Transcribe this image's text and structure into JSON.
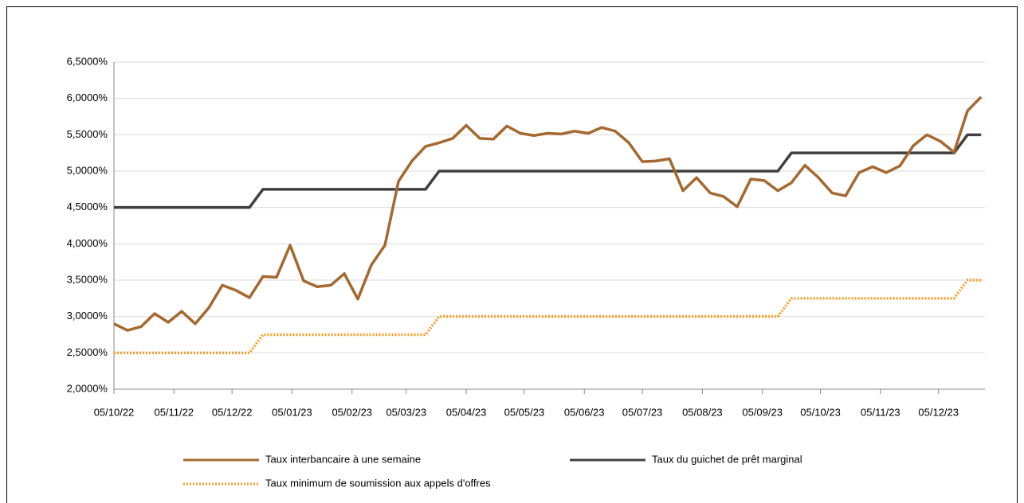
{
  "chart_data": {
    "type": "line",
    "x": [
      "2022-10-05",
      "2022-10-12",
      "2022-10-19",
      "2022-10-26",
      "2022-11-02",
      "2022-11-09",
      "2022-11-16",
      "2022-11-23",
      "2022-11-30",
      "2022-12-07",
      "2022-12-14",
      "2022-12-21",
      "2022-12-28",
      "2023-01-04",
      "2023-01-11",
      "2023-01-18",
      "2023-01-25",
      "2023-02-01",
      "2023-02-08",
      "2023-02-15",
      "2023-02-22",
      "2023-03-01",
      "2023-03-08",
      "2023-03-15",
      "2023-03-22",
      "2023-03-29",
      "2023-04-05",
      "2023-04-12",
      "2023-04-19",
      "2023-04-26",
      "2023-05-03",
      "2023-05-10",
      "2023-05-17",
      "2023-05-24",
      "2023-05-31",
      "2023-06-07",
      "2023-06-14",
      "2023-06-21",
      "2023-06-28",
      "2023-07-05",
      "2023-07-12",
      "2023-07-19",
      "2023-07-26",
      "2023-08-02",
      "2023-08-09",
      "2023-08-16",
      "2023-08-23",
      "2023-08-30",
      "2023-09-06",
      "2023-09-13",
      "2023-09-20",
      "2023-09-27",
      "2023-10-04",
      "2023-10-11",
      "2023-10-18",
      "2023-10-25",
      "2023-11-01",
      "2023-11-08",
      "2023-11-15",
      "2023-11-22",
      "2023-11-29",
      "2023-12-06",
      "2023-12-13",
      "2023-12-20",
      "2023-12-27"
    ],
    "series": [
      {
        "name": "Taux interbancaire à une semaine",
        "color": "#a5692f",
        "dash": "solid",
        "values": [
          2.9,
          2.81,
          2.86,
          3.04,
          2.92,
          3.07,
          2.9,
          3.12,
          3.43,
          3.36,
          3.26,
          3.55,
          3.54,
          3.98,
          3.49,
          3.41,
          3.43,
          3.59,
          3.24,
          3.71,
          3.98,
          4.86,
          5.14,
          5.34,
          5.39,
          5.45,
          5.63,
          5.45,
          5.44,
          5.62,
          5.52,
          5.49,
          5.52,
          5.51,
          5.55,
          5.52,
          5.6,
          5.55,
          5.39,
          5.13,
          5.14,
          5.17,
          4.73,
          4.91,
          4.7,
          4.65,
          4.51,
          4.89,
          4.87,
          4.73,
          4.84,
          5.08,
          4.91,
          4.7,
          4.66,
          4.98,
          5.06,
          4.98,
          5.07,
          5.35,
          5.5,
          5.41,
          5.26,
          5.83,
          6.02
        ]
      },
      {
        "name": "Taux du guichet de prêt marginal",
        "color": "#404040",
        "dash": "solid",
        "values": [
          4.5,
          4.5,
          4.5,
          4.5,
          4.5,
          4.5,
          4.5,
          4.5,
          4.5,
          4.5,
          4.5,
          4.75,
          4.75,
          4.75,
          4.75,
          4.75,
          4.75,
          4.75,
          4.75,
          4.75,
          4.75,
          4.75,
          4.75,
          4.75,
          5.0,
          5.0,
          5.0,
          5.0,
          5.0,
          5.0,
          5.0,
          5.0,
          5.0,
          5.0,
          5.0,
          5.0,
          5.0,
          5.0,
          5.0,
          5.0,
          5.0,
          5.0,
          5.0,
          5.0,
          5.0,
          5.0,
          5.0,
          5.0,
          5.0,
          5.0,
          5.25,
          5.25,
          5.25,
          5.25,
          5.25,
          5.25,
          5.25,
          5.25,
          5.25,
          5.25,
          5.25,
          5.25,
          5.25,
          5.5,
          5.5
        ]
      },
      {
        "name": "Taux minimum de soumission aux appels d'offres",
        "color": "#f5a02a",
        "dash": "dotted",
        "values": [
          2.5,
          2.5,
          2.5,
          2.5,
          2.5,
          2.5,
          2.5,
          2.5,
          2.5,
          2.5,
          2.5,
          2.75,
          2.75,
          2.75,
          2.75,
          2.75,
          2.75,
          2.75,
          2.75,
          2.75,
          2.75,
          2.75,
          2.75,
          2.75,
          3.0,
          3.0,
          3.0,
          3.0,
          3.0,
          3.0,
          3.0,
          3.0,
          3.0,
          3.0,
          3.0,
          3.0,
          3.0,
          3.0,
          3.0,
          3.0,
          3.0,
          3.0,
          3.0,
          3.0,
          3.0,
          3.0,
          3.0,
          3.0,
          3.0,
          3.0,
          3.25,
          3.25,
          3.25,
          3.25,
          3.25,
          3.25,
          3.25,
          3.25,
          3.25,
          3.25,
          3.25,
          3.25,
          3.25,
          3.5,
          3.5
        ]
      }
    ],
    "xlim": [
      "2022-10-05",
      "2023-12-29"
    ],
    "xticks": [
      {
        "value": "2022-10-05",
        "label": "05/10/22"
      },
      {
        "value": "2022-11-05",
        "label": "05/11/22"
      },
      {
        "value": "2022-12-05",
        "label": "05/12/22"
      },
      {
        "value": "2023-01-05",
        "label": "05/01/23"
      },
      {
        "value": "2023-02-05",
        "label": "05/02/23"
      },
      {
        "value": "2023-03-05",
        "label": "05/03/23"
      },
      {
        "value": "2023-04-05",
        "label": "05/04/23"
      },
      {
        "value": "2023-05-05",
        "label": "05/05/23"
      },
      {
        "value": "2023-06-05",
        "label": "05/06/23"
      },
      {
        "value": "2023-07-05",
        "label": "05/07/23"
      },
      {
        "value": "2023-08-05",
        "label": "05/08/23"
      },
      {
        "value": "2023-09-05",
        "label": "05/09/23"
      },
      {
        "value": "2023-10-05",
        "label": "05/10/23"
      },
      {
        "value": "2023-11-05",
        "label": "05/11/23"
      },
      {
        "value": "2023-12-05",
        "label": "05/12/23"
      }
    ],
    "ylim": [
      2,
      6.5
    ],
    "yticks": [
      {
        "value": 2,
        "label": "2,0000%"
      },
      {
        "value": 2.5,
        "label": "2,5000%"
      },
      {
        "value": 3,
        "label": "3,0000%"
      },
      {
        "value": 3.5,
        "label": "3,5000%"
      },
      {
        "value": 4,
        "label": "4,0000%"
      },
      {
        "value": 4.5,
        "label": "4,5000%"
      },
      {
        "value": 5,
        "label": "5,0000%"
      },
      {
        "value": 5.5,
        "label": "5,5000%"
      },
      {
        "value": 6,
        "label": "6,0000%"
      },
      {
        "value": 6.5,
        "label": "6,5000%"
      }
    ],
    "grid": true,
    "legend": "bottom"
  }
}
